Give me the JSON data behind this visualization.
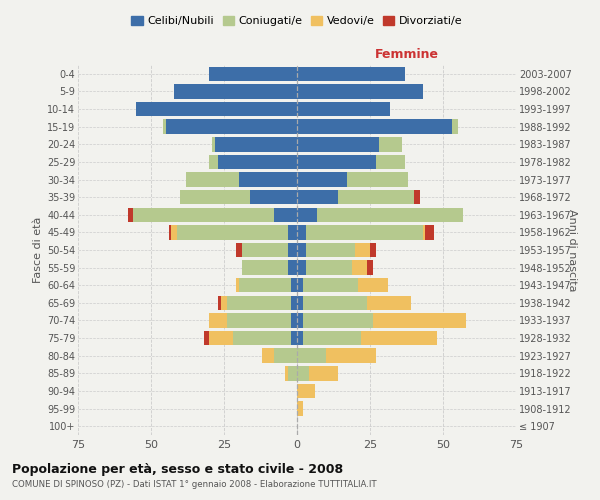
{
  "age_groups": [
    "100+",
    "95-99",
    "90-94",
    "85-89",
    "80-84",
    "75-79",
    "70-74",
    "65-69",
    "60-64",
    "55-59",
    "50-54",
    "45-49",
    "40-44",
    "35-39",
    "30-34",
    "25-29",
    "20-24",
    "15-19",
    "10-14",
    "5-9",
    "0-4"
  ],
  "birth_years": [
    "≤ 1907",
    "1908-1912",
    "1913-1917",
    "1918-1922",
    "1923-1927",
    "1928-1932",
    "1933-1937",
    "1938-1942",
    "1943-1947",
    "1948-1952",
    "1953-1957",
    "1958-1962",
    "1963-1967",
    "1968-1972",
    "1973-1977",
    "1978-1982",
    "1983-1987",
    "1988-1992",
    "1993-1997",
    "1998-2002",
    "2003-2007"
  ],
  "male_celibe": [
    0,
    0,
    0,
    0,
    0,
    2,
    2,
    2,
    2,
    3,
    3,
    3,
    8,
    16,
    20,
    27,
    28,
    45,
    55,
    42,
    30
  ],
  "male_coniugato": [
    0,
    0,
    0,
    3,
    8,
    20,
    22,
    22,
    18,
    16,
    16,
    38,
    48,
    24,
    18,
    3,
    1,
    1,
    0,
    0,
    0
  ],
  "male_vedovo": [
    0,
    0,
    0,
    1,
    4,
    8,
    6,
    2,
    1,
    0,
    0,
    2,
    0,
    0,
    0,
    0,
    0,
    0,
    0,
    0,
    0
  ],
  "male_divorziato": [
    0,
    0,
    0,
    0,
    0,
    2,
    0,
    1,
    0,
    0,
    2,
    1,
    2,
    0,
    0,
    0,
    0,
    0,
    0,
    0,
    0
  ],
  "female_celibe": [
    0,
    0,
    0,
    0,
    0,
    2,
    2,
    2,
    2,
    3,
    3,
    3,
    7,
    14,
    17,
    27,
    28,
    53,
    32,
    43,
    37
  ],
  "female_coniugato": [
    0,
    0,
    0,
    4,
    10,
    20,
    24,
    22,
    19,
    16,
    17,
    40,
    50,
    26,
    21,
    10,
    8,
    2,
    0,
    0,
    0
  ],
  "female_vedovo": [
    0,
    2,
    6,
    10,
    17,
    26,
    32,
    15,
    10,
    5,
    5,
    1,
    0,
    0,
    0,
    0,
    0,
    0,
    0,
    0,
    0
  ],
  "female_divorziato": [
    0,
    0,
    0,
    0,
    0,
    0,
    0,
    0,
    0,
    2,
    2,
    3,
    0,
    2,
    0,
    0,
    0,
    0,
    0,
    0,
    0
  ],
  "color_celibe": "#3d6ea8",
  "color_coniugato": "#b5c98e",
  "color_vedovo": "#f0c060",
  "color_divorziato": "#c0392b",
  "title": "Popolazione per età, sesso e stato civile - 2008",
  "subtitle": "COMUNE DI SPINOSO (PZ) - Dati ISTAT 1° gennaio 2008 - Elaborazione TUTTITALIA.IT",
  "label_femmine": "Femmine",
  "ylabel_left": "Fasce di età",
  "ylabel_right": "Anni di nascita",
  "legend_labels": [
    "Celibi/Nubili",
    "Coniugati/e",
    "Vedovi/e",
    "Divorziati/e"
  ],
  "xlim": 75,
  "bg_color": "#f2f2ee",
  "grid_color": "#cccccc"
}
